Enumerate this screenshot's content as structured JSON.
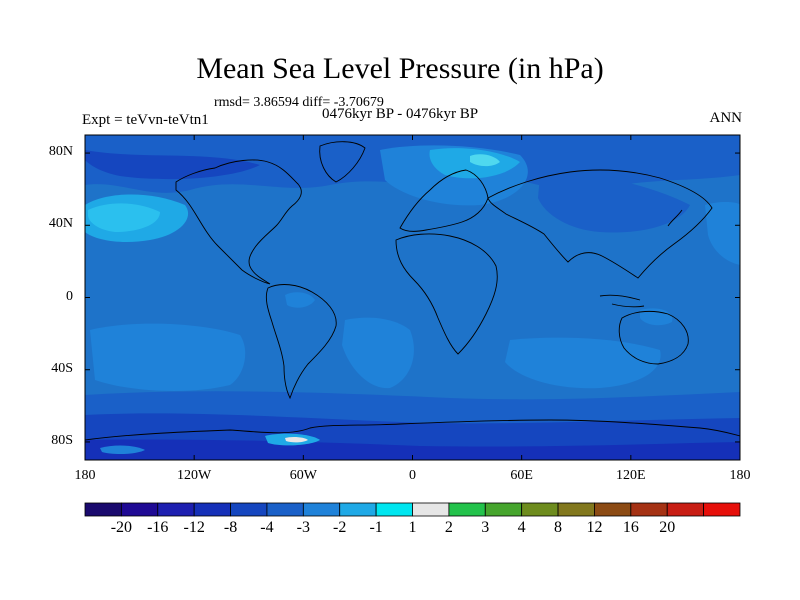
{
  "title": "Mean Sea Level Pressure (in hPa)",
  "stats": "rmsd= 3.86594 diff= -3.70679",
  "period": "0476kyr BP - 0476kyr BP",
  "experiment": "Expt = teVvn-teVtn1",
  "season": "ANN",
  "map": {
    "projection": "cylindrical-equidistant",
    "lon_range": [
      -180,
      180
    ],
    "lat_range": [
      -90,
      90
    ],
    "x_ticks": [
      {
        "lon": -180,
        "label": "180"
      },
      {
        "lon": -120,
        "label": "120W"
      },
      {
        "lon": -60,
        "label": "60W"
      },
      {
        "lon": 0,
        "label": "0"
      },
      {
        "lon": 60,
        "label": "60E"
      },
      {
        "lon": 120,
        "label": "120E"
      },
      {
        "lon": 180,
        "label": "180"
      }
    ],
    "y_ticks": [
      {
        "lat": 80,
        "label": "80N"
      },
      {
        "lat": 40,
        "label": "40N"
      },
      {
        "lat": 0,
        "label": "0"
      },
      {
        "lat": -40,
        "label": "40S"
      },
      {
        "lat": -80,
        "label": "80S"
      }
    ],
    "background_color": "#1e73c9"
  },
  "colorbar": {
    "colors": [
      "#1a0a6e",
      "#1f0a94",
      "#1d1fb0",
      "#1530b8",
      "#1546bf",
      "#1a60c8",
      "#1f82d9",
      "#1fa9e6",
      "#00e6f0",
      "#e6e6e6",
      "#23c24b",
      "#46a52d",
      "#6e8c1e",
      "#82781e",
      "#8c4b14",
      "#a53214",
      "#c81e14",
      "#e60f0a"
    ],
    "labels": [
      "-20",
      "-16",
      "-12",
      "-8",
      "-4",
      "-3",
      "-2",
      "-1",
      "1",
      "2",
      "3",
      "4",
      "8",
      "12",
      "16",
      "20"
    ]
  }
}
